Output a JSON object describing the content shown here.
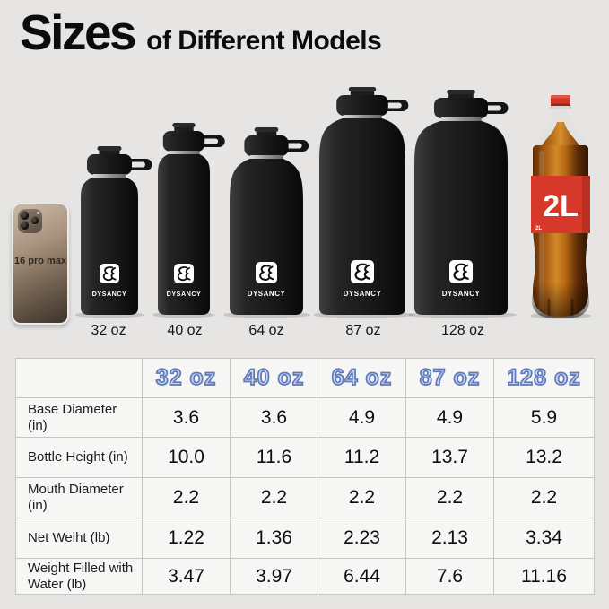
{
  "title": {
    "primary": "Sizes",
    "secondary": "of Different Models"
  },
  "brand": {
    "name": "DYSANCY"
  },
  "lineup": {
    "phone_label": "16 pro max",
    "bottle_labels": [
      "32 oz",
      "40 oz",
      "64 oz",
      "87 oz",
      "128 oz"
    ],
    "soda_label": "2L"
  },
  "table": {
    "corner": "",
    "columns": [
      "32 oz",
      "40 oz",
      "64 oz",
      "87 oz",
      "128 oz"
    ],
    "rows": [
      {
        "label": "Base Diameter (in)",
        "values": [
          "3.6",
          "3.6",
          "4.9",
          "4.9",
          "5.9"
        ]
      },
      {
        "label": "Bottle Height (in)",
        "values": [
          "10.0",
          "11.6",
          "11.2",
          "13.7",
          "13.2"
        ]
      },
      {
        "label": "Mouth Diameter (in)",
        "values": [
          "2.2",
          "2.2",
          "2.2",
          "2.2",
          "2.2"
        ]
      },
      {
        "label": "Net Weiht (lb)",
        "values": [
          "1.22",
          "1.36",
          "2.23",
          "2.13",
          "3.34"
        ]
      },
      {
        "label": "Weight Filled with Water (lb)",
        "values": [
          "3.47",
          "3.97",
          "6.44",
          "7.6",
          "11.16"
        ]
      }
    ]
  },
  "colors": {
    "background": "#e6e5e4",
    "bottle_black": "#151515",
    "soda_red": "#d6392a",
    "header_fill": "#cad6f1",
    "header_stroke": "#6079b9"
  }
}
